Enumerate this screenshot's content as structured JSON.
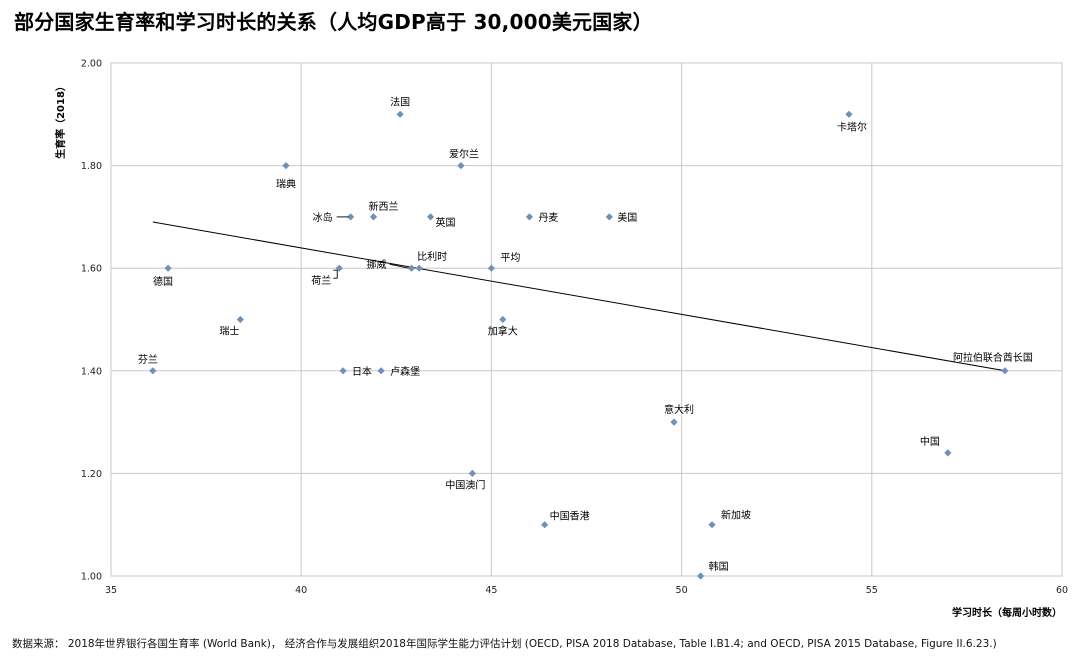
{
  "title": "部分国家生育率和学习时长的关系（人均GDP高于 30,000美元国家）",
  "source": "数据来源： 2018年世界银行各国生育率 (World Bank)， 经济合作与发展组织2018年国际学生能力评估计划 (OECD, PISA 2018 Database, Table I.B1.4; and OECD, PISA 2015 Database, Figure II.6.23.)",
  "colors": {
    "marker": "#6b93b8",
    "grid": "#c8c8c8",
    "trend": "#000000"
  },
  "chart_data": {
    "type": "scatter",
    "title": "部分国家生育率和学习时长的关系（人均GDP高于 30,000美元国家）",
    "xlabel": "学习时长（每周小时数）",
    "ylabel": "生育率（2018）",
    "xlim": [
      35,
      60
    ],
    "ylim": [
      1.0,
      2.0
    ],
    "xticks": [
      "35",
      "40",
      "45",
      "50",
      "55",
      "60"
    ],
    "yticks": [
      "1.00",
      "1.20",
      "1.40",
      "1.60",
      "1.80",
      "2.00"
    ],
    "grid": true,
    "points": [
      {
        "label": "法国",
        "x": 42.6,
        "y": 1.9
      },
      {
        "label": "卡塔尔",
        "x": 54.4,
        "y": 1.9
      },
      {
        "label": "爱尔兰",
        "x": 44.2,
        "y": 1.8
      },
      {
        "label": "瑞典",
        "x": 39.6,
        "y": 1.8
      },
      {
        "label": "冰岛",
        "x": 41.3,
        "y": 1.7
      },
      {
        "label": "新西兰",
        "x": 41.9,
        "y": 1.7
      },
      {
        "label": "英国",
        "x": 43.4,
        "y": 1.7
      },
      {
        "label": "丹麦",
        "x": 46.0,
        "y": 1.7
      },
      {
        "label": "美国",
        "x": 48.1,
        "y": 1.7
      },
      {
        "label": "德国",
        "x": 36.5,
        "y": 1.6
      },
      {
        "label": "荷兰",
        "x": 41.0,
        "y": 1.6
      },
      {
        "label": "挪威",
        "x": 42.9,
        "y": 1.6
      },
      {
        "label": "比利时",
        "x": 43.1,
        "y": 1.6
      },
      {
        "label": "平均",
        "x": 45.0,
        "y": 1.6
      },
      {
        "label": "瑞士",
        "x": 38.4,
        "y": 1.5
      },
      {
        "label": "加拿大",
        "x": 45.3,
        "y": 1.5
      },
      {
        "label": "芬兰",
        "x": 36.1,
        "y": 1.4
      },
      {
        "label": "日本",
        "x": 41.1,
        "y": 1.4
      },
      {
        "label": "卢森堡",
        "x": 42.1,
        "y": 1.4
      },
      {
        "label": "阿拉伯联合酋长国",
        "x": 58.5,
        "y": 1.4
      },
      {
        "label": "意大利",
        "x": 49.8,
        "y": 1.3
      },
      {
        "label": "中国",
        "x": 57.0,
        "y": 1.24
      },
      {
        "label": "中国澳门",
        "x": 44.5,
        "y": 1.2
      },
      {
        "label": "中国香港",
        "x": 46.4,
        "y": 1.1
      },
      {
        "label": "新加坡",
        "x": 50.8,
        "y": 1.1
      },
      {
        "label": "韩国",
        "x": 50.5,
        "y": 1.0
      }
    ],
    "trendline": {
      "x": [
        36.1,
        58.5
      ],
      "y": [
        1.69,
        1.4
      ]
    }
  }
}
